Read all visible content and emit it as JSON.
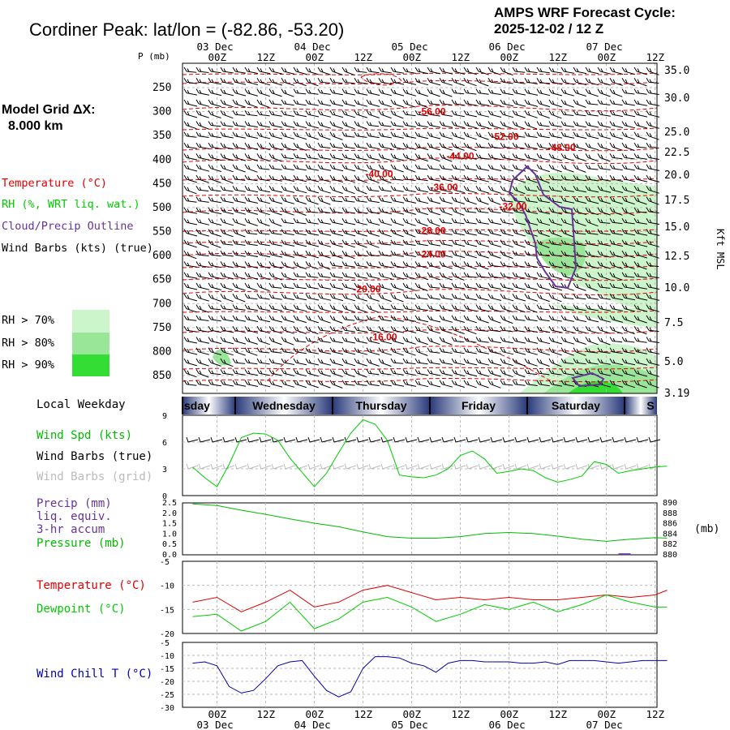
{
  "header": {
    "title": "Cordiner Peak:  lat/lon = (-82.86, -53.20)",
    "cycle_line1": "AMPS WRF Forecast Cycle:",
    "cycle_line2": "2025-12-02 / 12  Z"
  },
  "left_legend": {
    "grid_line1": "Model Grid ΔX:",
    "grid_line2": "8.000 km",
    "temperature": "Temperature (°C)",
    "rh": "RH (%, WRT liq. wat.)",
    "cloud": "Cloud/Precip Outline",
    "wind": "Wind Barbs (kts) (true)",
    "rh70": "RH > 70%",
    "rh80": "RH > 80%",
    "rh90": "RH > 90%",
    "rh_colors": [
      "#ccf5cc",
      "#99e699",
      "#33dd33"
    ]
  },
  "colors": {
    "temperature": "#e00000",
    "dewpoint": "#00cc00",
    "cloud": "#663399",
    "windchill": "#0000aa",
    "precip": "#663399",
    "pressure": "#00bb00",
    "grid_barbs": "#bbbbbb",
    "day_bar_dark": "#2a3a7a",
    "day_bar_light": "#ffffff"
  },
  "time_axis": {
    "top_dates": [
      "03 Dec",
      "04 Dec",
      "05 Dec",
      "06 Dec",
      "07 Dec"
    ],
    "ticks": [
      "00Z",
      "12Z",
      "00Z",
      "12Z",
      "00Z",
      "12Z",
      "00Z",
      "12Z",
      "00Z",
      "12Z"
    ],
    "bottom_dates": [
      "03 Dec",
      "04 Dec",
      "05 Dec",
      "06 Dec",
      "07 Dec"
    ],
    "start_hours_before_first_00z": 6,
    "total_hours": 117
  },
  "weekday_bar": {
    "label": "Local Weekday",
    "days": [
      "sday",
      "Wednesday",
      "Thursday",
      "Friday",
      "Saturday",
      "S"
    ]
  },
  "chart_data": [
    {
      "type": "heatmap",
      "ylabel_left": "P (mb)",
      "ylabel_right": "Kft MSL",
      "pressure_ticks": [
        250,
        300,
        350,
        400,
        450,
        500,
        550,
        600,
        650,
        700,
        750,
        800,
        850
      ],
      "height_ticks": [
        "35.0",
        "30.0",
        "25.0",
        "22.5",
        "20.0",
        "17.5",
        "15.0",
        "12.5",
        "10.0",
        "7.5",
        "5.0",
        "3.19"
      ],
      "ylim": [
        890,
        220
      ],
      "temperature_labels": [
        {
          "text": "-56.00",
          "hour": 54,
          "p": 300
        },
        {
          "text": "-52.00",
          "hour": 72,
          "p": 352
        },
        {
          "text": "-48.00",
          "hour": 86,
          "p": 375
        },
        {
          "text": "-44.00",
          "hour": 61,
          "p": 393
        },
        {
          "text": "-40.00",
          "hour": 41,
          "p": 430
        },
        {
          "text": "-36.00",
          "hour": 57,
          "p": 458
        },
        {
          "text": "-32.00",
          "hour": 74,
          "p": 498
        },
        {
          "text": "-28.00",
          "hour": 54,
          "p": 548
        },
        {
          "text": "-24.00",
          "hour": 54,
          "p": 597
        },
        {
          "text": "-20.00",
          "hour": 38,
          "p": 670
        },
        {
          "text": "-16.00",
          "hour": 42,
          "p": 770
        }
      ]
    },
    {
      "type": "line",
      "label": "Wind Spd (kts)",
      "label2": "Wind Barbs (true)",
      "label3": "Wind Barbs (grid)",
      "y_ticks": [
        "9",
        "6",
        "3",
        "0"
      ],
      "ylim": [
        0,
        9
      ],
      "series": [
        {
          "name": "Wind Spd (kts)",
          "x": [
            -6,
            -3,
            0,
            3,
            6,
            9,
            12,
            15,
            18,
            21,
            24,
            27,
            30,
            33,
            36,
            39,
            42,
            45,
            48,
            51,
            54,
            57,
            60,
            63,
            66,
            69,
            72,
            75,
            78,
            81,
            84,
            87,
            90,
            93,
            96,
            99,
            102,
            105,
            108,
            111
          ],
          "values": [
            3.2,
            2,
            1,
            3.5,
            6.5,
            7,
            6.9,
            6.2,
            4.2,
            2.6,
            1,
            2.5,
            4.8,
            7,
            8.5,
            8,
            6.2,
            2.3,
            2.1,
            2,
            2.3,
            3,
            4.5,
            5,
            4.1,
            2.5,
            2.7,
            3,
            2.8,
            2,
            1.5,
            1.8,
            2.2,
            3.8,
            3.5,
            2.5,
            2.8,
            3,
            3.2,
            3.3
          ]
        }
      ]
    },
    {
      "type": "line",
      "label": "Precip (mm)",
      "label2": "liq. equiv.",
      "label3": "3-hr accum",
      "label4": "Pressure (mb)",
      "ylabel_right": "(mb)",
      "y_ticks_left": [
        "2.5",
        "2.0",
        "1.5",
        "1.0",
        "0.5",
        "0.0"
      ],
      "y_ticks_right": [
        "890",
        "888",
        "886",
        "884",
        "882",
        "880"
      ],
      "ylim_left": [
        0,
        2.5
      ],
      "ylim_right": [
        880,
        890
      ],
      "series": [
        {
          "name": "Pressure (mb)",
          "x": [
            -6,
            0,
            6,
            12,
            18,
            24,
            30,
            36,
            42,
            48,
            54,
            60,
            66,
            72,
            78,
            84,
            90,
            96,
            102,
            108,
            111
          ],
          "values": [
            889.8,
            889.5,
            888.6,
            887.8,
            886.9,
            886.1,
            885.4,
            884.4,
            883.5,
            883.2,
            883.2,
            883.5,
            884.1,
            884.3,
            884.1,
            883.6,
            883.0,
            882.6,
            883.0,
            883.3,
            883.2
          ]
        },
        {
          "name": "Precip (mm)",
          "x": [
            99,
            102
          ],
          "values": [
            0.03,
            0.03
          ]
        }
      ]
    },
    {
      "type": "line",
      "label": "Temperature (°C)",
      "label2": "Dewpoint (°C)",
      "y_ticks": [
        "-5",
        "-10",
        "-15",
        "-20"
      ],
      "ylim": [
        -20,
        -5
      ],
      "series": [
        {
          "name": "Temperature (°C)",
          "x": [
            -6,
            0,
            6,
            12,
            18,
            24,
            30,
            36,
            42,
            48,
            54,
            60,
            66,
            72,
            78,
            84,
            90,
            96,
            102,
            108,
            111
          ],
          "values": [
            -13.5,
            -12.5,
            -15.5,
            -13.5,
            -11,
            -14.5,
            -13.5,
            -11,
            -10,
            -11.5,
            -13,
            -12.5,
            -13,
            -12.5,
            -13,
            -13,
            -12.5,
            -12,
            -12.5,
            -12,
            -11
          ]
        },
        {
          "name": "Dewpoint (°C)",
          "x": [
            -6,
            0,
            6,
            12,
            18,
            24,
            30,
            36,
            42,
            48,
            54,
            60,
            66,
            72,
            78,
            84,
            90,
            96,
            102,
            108,
            111
          ],
          "values": [
            -16.5,
            -16,
            -19.5,
            -17.5,
            -13.5,
            -19,
            -17,
            -13.5,
            -12.5,
            -14.5,
            -17.5,
            -16,
            -14,
            -15,
            -13.5,
            -15.5,
            -14,
            -12,
            -13.5,
            -14.5,
            -14.5
          ]
        }
      ]
    },
    {
      "type": "line",
      "label": "Wind Chill T (°C)",
      "y_ticks": [
        "-5",
        "-10",
        "-15",
        "-20",
        "-25",
        "-30"
      ],
      "ylim": [
        -30,
        -5
      ],
      "series": [
        {
          "name": "Wind Chill T (°C)",
          "x": [
            -6,
            -3,
            0,
            3,
            6,
            9,
            12,
            15,
            18,
            21,
            24,
            27,
            30,
            33,
            36,
            39,
            42,
            45,
            48,
            51,
            54,
            57,
            60,
            63,
            66,
            69,
            72,
            75,
            78,
            81,
            84,
            87,
            90,
            93,
            96,
            99,
            102,
            105,
            108,
            111
          ],
          "values": [
            -13,
            -12.5,
            -14,
            -22,
            -24.5,
            -23.5,
            -19,
            -14,
            -12.5,
            -12,
            -18,
            -23.5,
            -26,
            -24,
            -15,
            -10.5,
            -10.5,
            -11,
            -13,
            -14,
            -16.5,
            -13,
            -12,
            -12,
            -12.5,
            -12.5,
            -12.5,
            -13,
            -13,
            -12.5,
            -13.5,
            -12,
            -12,
            -12,
            -12.5,
            -13,
            -12.5,
            -12,
            -12,
            -12
          ]
        }
      ]
    }
  ]
}
